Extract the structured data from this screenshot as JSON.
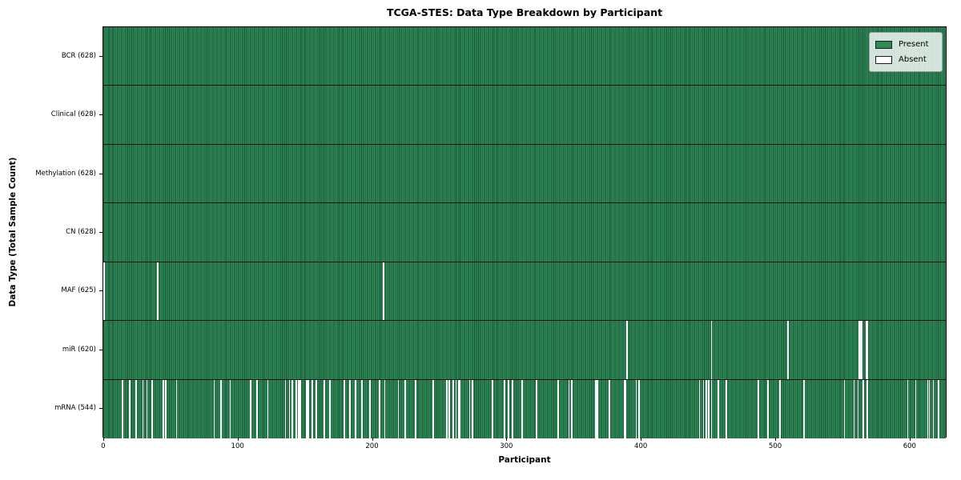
{
  "chart_data": {
    "type": "heatmap",
    "title": "TCGA-STES: Data Type Breakdown by Participant",
    "xlabel": "Participant",
    "ylabel": "Data Type (Total Sample Count)",
    "n_participants": 628,
    "x_range": [
      -0.5,
      627.5
    ],
    "x_ticks": [
      0,
      100,
      200,
      300,
      400,
      500,
      600
    ],
    "grid": false,
    "legend_position": "upper right",
    "present_color": "#2e8b57",
    "present_edge_color": "#15502f",
    "absent_color": "#ffffff",
    "legend": [
      {
        "label": "Present",
        "color": "#2e8b57"
      },
      {
        "label": "Absent",
        "color": "#ffffff"
      }
    ],
    "rows": [
      {
        "label": "BCR (628)",
        "present_count": 628,
        "absent_participants": []
      },
      {
        "label": "Clinical (628)",
        "present_count": 628,
        "absent_participants": []
      },
      {
        "label": "Methylation (628)",
        "present_count": 628,
        "absent_participants": []
      },
      {
        "label": "CN (628)",
        "present_count": 628,
        "absent_participants": []
      },
      {
        "label": "MAF (625)",
        "present_count": 625,
        "absent_participants": [
          0,
          40,
          208
        ]
      },
      {
        "label": "miR (620)",
        "present_count": 620,
        "absent_participants": [
          389,
          452,
          509,
          562,
          563,
          564,
          567,
          568
        ]
      },
      {
        "label": "mRNA (544)",
        "present_count": 544,
        "absent_participants": [
          14,
          19,
          24,
          29,
          32,
          36,
          44,
          46,
          54,
          82,
          87,
          94,
          109,
          114,
          122,
          135,
          138,
          140,
          143,
          145,
          146,
          151,
          152,
          155,
          158,
          164,
          168,
          179,
          183,
          187,
          192,
          198,
          205,
          209,
          219,
          224,
          232,
          245,
          255,
          257,
          260,
          262,
          264,
          265,
          272,
          274,
          289,
          298,
          301,
          304,
          311,
          322,
          338,
          346,
          348,
          366,
          367,
          376,
          387,
          388,
          396,
          398,
          443,
          446,
          448,
          450,
          452,
          457,
          463,
          487,
          494,
          503,
          521,
          551,
          558,
          561,
          565,
          568,
          598,
          604,
          613,
          614,
          617,
          621
        ]
      }
    ]
  }
}
